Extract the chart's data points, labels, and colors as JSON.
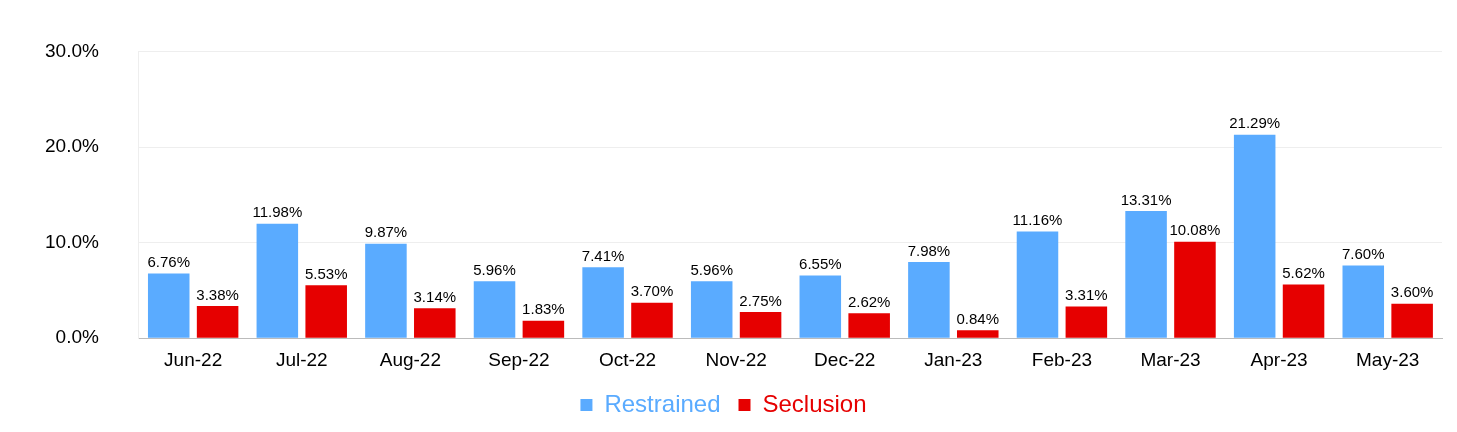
{
  "chart_data": {
    "type": "bar",
    "categories": [
      "Jun-22",
      "Jul-22",
      "Aug-22",
      "Sep-22",
      "Oct-22",
      "Nov-22",
      "Dec-22",
      "Jan-23",
      "Feb-23",
      "Mar-23",
      "Apr-23",
      "May-23"
    ],
    "series": [
      {
        "name": "Restrained",
        "color": "#5aabff",
        "values": [
          6.76,
          11.98,
          9.87,
          5.96,
          7.41,
          5.96,
          6.55,
          7.98,
          11.16,
          13.31,
          21.29,
          7.6
        ],
        "value_labels": [
          "6.76%",
          "11.98%",
          "9.87%",
          "5.96%",
          "7.41%",
          "5.96%",
          "6.55%",
          "7.98%",
          "11.16%",
          "13.31%",
          "21.29%",
          "7.60%"
        ]
      },
      {
        "name": "Seclusion",
        "color": "#e60000",
        "values": [
          3.38,
          5.53,
          3.14,
          1.83,
          3.7,
          2.75,
          2.62,
          0.84,
          3.31,
          10.08,
          5.62,
          3.6
        ],
        "value_labels": [
          "3.38%",
          "5.53%",
          "3.14%",
          "1.83%",
          "3.70%",
          "2.75%",
          "2.62%",
          "0.84%",
          "3.31%",
          "10.08%",
          "5.62%",
          "3.60%"
        ]
      }
    ],
    "ylim": [
      0,
      30
    ],
    "yticks": [
      {
        "value": 0,
        "label": "0.0%"
      },
      {
        "value": 10,
        "label": "10.0%"
      },
      {
        "value": 20,
        "label": "20.0%"
      },
      {
        "value": 30,
        "label": "30.0%"
      }
    ],
    "grid": "y",
    "legend": "bottom"
  }
}
